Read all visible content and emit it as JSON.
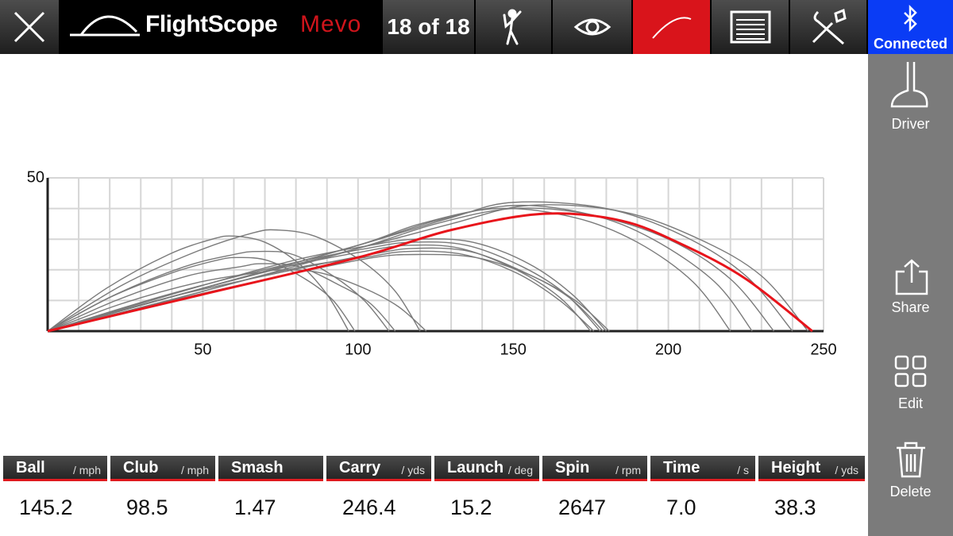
{
  "toolbar": {
    "brand": "FlightScope",
    "product": "Mevo",
    "shot_counter": "18 of 18",
    "bluetooth_status": "Connected"
  },
  "sidebar": {
    "club": "Driver",
    "actions": [
      "Share",
      "Edit",
      "Delete"
    ]
  },
  "chart_data": {
    "type": "line",
    "xlim": [
      0,
      250
    ],
    "ylim": [
      0,
      50
    ],
    "xticks": [
      50,
      100,
      150,
      200,
      250
    ],
    "yticks": [
      50
    ],
    "x_minor_ticks": [
      10,
      20,
      30,
      40,
      50,
      60,
      70,
      80,
      90,
      100,
      110,
      120,
      130,
      140,
      150,
      160,
      170,
      180,
      190,
      200,
      210,
      220,
      230,
      240,
      250
    ],
    "y_minor_ticks": [
      10,
      20,
      30,
      40,
      50
    ],
    "grid": true,
    "series": [
      {
        "color": "#7a7a7a",
        "x": [
          0,
          50,
          100,
          130,
          155,
          185,
          210,
          230,
          245
        ],
        "values": [
          0,
          14,
          27,
          35,
          41,
          39,
          30,
          18,
          0
        ]
      },
      {
        "color": "#7a7a7a",
        "x": [
          0,
          50,
          100,
          130,
          150,
          180,
          205,
          225,
          240
        ],
        "values": [
          0,
          14,
          28,
          37,
          42,
          40,
          31,
          18,
          0
        ]
      },
      {
        "color": "#7a7a7a",
        "x": [
          0,
          50,
          100,
          125,
          150,
          175,
          200,
          220,
          234
        ],
        "values": [
          0,
          13,
          27,
          35,
          40,
          38,
          30,
          17,
          0
        ]
      },
      {
        "color": "#7a7a7a",
        "x": [
          0,
          50,
          100,
          125,
          150,
          175,
          195,
          215,
          227
        ],
        "values": [
          0,
          14,
          28,
          36,
          41,
          38,
          30,
          16,
          0
        ]
      },
      {
        "color": "#7a7a7a",
        "x": [
          0,
          50,
          100,
          120,
          145,
          170,
          190,
          208,
          220
        ],
        "values": [
          0,
          14,
          28,
          35,
          40,
          37,
          29,
          16,
          0
        ]
      },
      {
        "color": "#7a7a7a",
        "x": [
          0,
          40,
          79,
          104,
          119,
          137,
          155,
          169,
          180
        ],
        "values": [
          0,
          12,
          23,
          28,
          30,
          29,
          22,
          12,
          0
        ]
      },
      {
        "color": "#7a7a7a",
        "x": [
          0,
          39,
          78,
          103,
          117,
          135,
          153,
          167,
          178
        ],
        "values": [
          0,
          12,
          22,
          27,
          29,
          28,
          21,
          12,
          0
        ]
      },
      {
        "color": "#7a7a7a",
        "x": [
          0,
          39,
          77,
          102,
          116,
          134,
          151,
          165,
          176
        ],
        "values": [
          0,
          10,
          20,
          24,
          26,
          25,
          19,
          10,
          0
        ]
      },
      {
        "color": "#7a7a7a",
        "x": [
          0,
          39,
          77,
          102,
          116,
          133,
          151,
          165,
          175
        ],
        "values": [
          0,
          11,
          21,
          26,
          28,
          27,
          20,
          11,
          0
        ]
      },
      {
        "color": "#7a7a7a",
        "x": [
          0,
          40,
          80,
          105,
          119,
          138,
          156,
          170,
          181
        ],
        "values": [
          0,
          10,
          19,
          24,
          25,
          24,
          18,
          10,
          0
        ]
      },
      {
        "color": "#7a7a7a",
        "x": [
          0,
          39,
          79,
          104,
          118,
          136,
          154,
          168,
          179
        ],
        "values": [
          0,
          11,
          20,
          25,
          27,
          26,
          19,
          11,
          0
        ]
      },
      {
        "color": "#7a7a7a",
        "x": [
          0,
          19,
          39,
          53,
          60,
          70,
          81,
          90,
          97
        ],
        "values": [
          0,
          14,
          25,
          30,
          31,
          29,
          22,
          12,
          0
        ]
      },
      {
        "color": "#7a7a7a",
        "x": [
          0,
          24,
          48,
          66,
          74,
          86,
          101,
          112,
          120
        ],
        "values": [
          0,
          15,
          26,
          32,
          33,
          31,
          23,
          13,
          0
        ]
      },
      {
        "color": "#7a7a7a",
        "x": [
          0,
          20,
          40,
          54,
          61,
          71,
          83,
          92,
          99
        ],
        "values": [
          0,
          11,
          19,
          23,
          24,
          23,
          17,
          10,
          0
        ]
      },
      {
        "color": "#7a7a7a",
        "x": [
          0,
          22,
          44,
          60,
          68,
          79,
          92,
          102,
          110
        ],
        "values": [
          0,
          12,
          21,
          25,
          26,
          25,
          18,
          10,
          0
        ]
      },
      {
        "color": "#7a7a7a",
        "x": [
          0,
          22,
          45,
          62,
          69,
          81,
          94,
          104,
          112
        ],
        "values": [
          0,
          10,
          18,
          21,
          22,
          21,
          15,
          9,
          0
        ]
      },
      {
        "color": "#7a7a7a",
        "x": [
          0,
          24,
          49,
          67,
          76,
          88,
          102,
          113,
          122
        ],
        "values": [
          0,
          9,
          16,
          19,
          20,
          19,
          14,
          8,
          0
        ]
      },
      {
        "color": "#e8141b",
        "x": [
          0,
          50,
          100,
          130,
          160,
          185,
          205,
          225,
          246.4
        ],
        "values": [
          0,
          12,
          24,
          33,
          38.3,
          36,
          28,
          17,
          0
        ]
      }
    ]
  },
  "metrics": [
    {
      "name": "Ball",
      "unit": "/ mph",
      "value": "145.2"
    },
    {
      "name": "Club",
      "unit": "/ mph",
      "value": "98.5"
    },
    {
      "name": "Smash",
      "value": "1.47"
    },
    {
      "name": "Carry",
      "unit": "/ yds",
      "value": "246.4"
    },
    {
      "name": "Launch",
      "unit": "/ deg",
      "value": "15.2"
    },
    {
      "name": "Spin",
      "unit": "/ rpm",
      "value": "2647"
    },
    {
      "name": "Time",
      "unit": "/ s",
      "value": "7.0"
    },
    {
      "name": "Height",
      "unit": "/ yds",
      "value": "38.3"
    }
  ]
}
